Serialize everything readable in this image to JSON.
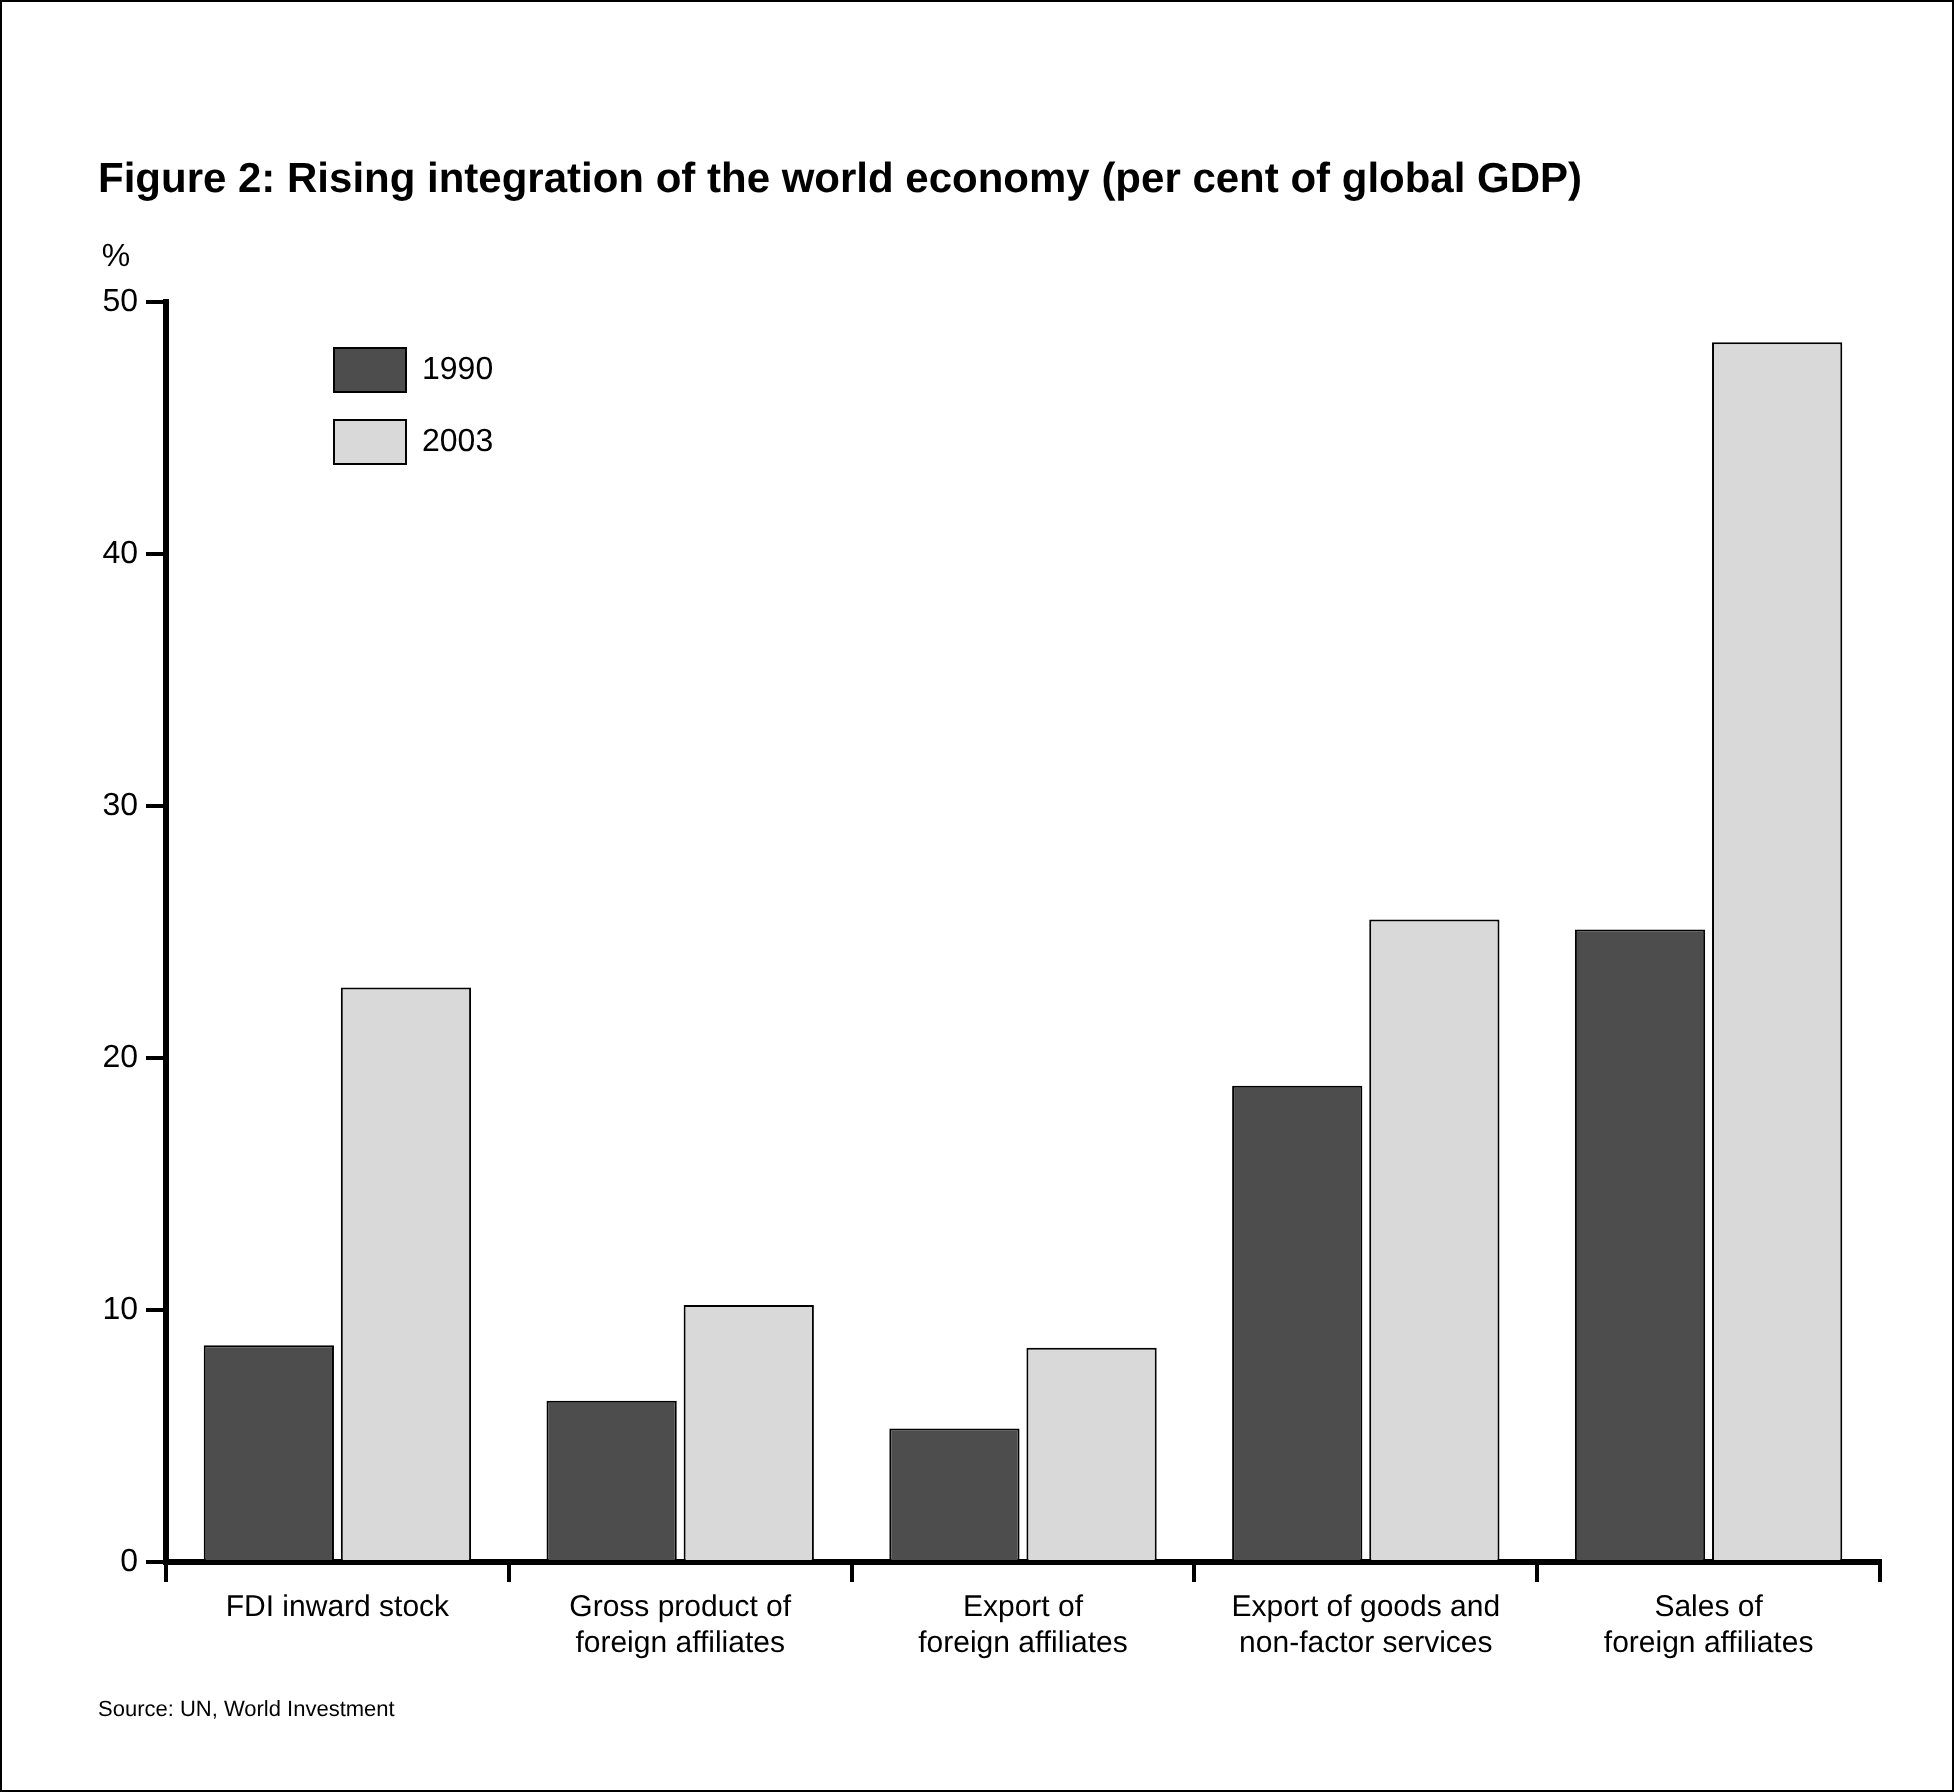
{
  "chart_data": {
    "type": "bar",
    "title": "Figure 2: Rising integration of the world economy (per cent of global GDP)",
    "ylabel": "%",
    "categories": [
      "FDI inward stock",
      "Gross product of\nforeign affiliates",
      "Export of\nforeign affiliates",
      "Export of goods and\nnon-factor services",
      "Sales of\nforeign affiliates"
    ],
    "series": [
      {
        "name": "1990",
        "color": "#4d4d4d",
        "values": [
          8.6,
          6.4,
          5.3,
          18.9,
          25.1
        ]
      },
      {
        "name": "2003",
        "color": "#d9d9d9",
        "values": [
          22.8,
          10.2,
          8.5,
          25.5,
          48.4
        ]
      }
    ],
    "ylim": [
      0,
      50
    ],
    "yticks": [
      0,
      10,
      20,
      30,
      40,
      50
    ],
    "legend": "top left",
    "annotations": [
      "Source: UN, World Investment"
    ]
  }
}
